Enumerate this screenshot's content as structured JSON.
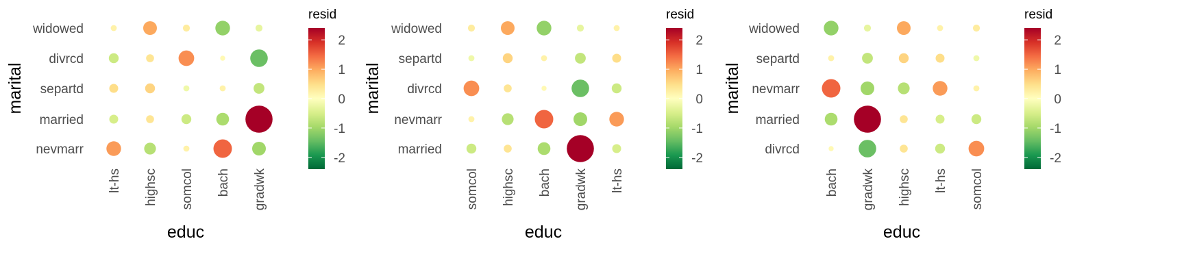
{
  "chart_data": [
    {
      "type": "balloon",
      "xlabel": "educ",
      "ylabel": "marital",
      "x_categories": [
        "lt-hs",
        "highsc",
        "somcol",
        "bach",
        "gradwk"
      ],
      "y_categories": [
        "widowed",
        "divrcd",
        "separtd",
        "married",
        "nevmarr"
      ],
      "legend": {
        "title": "resid",
        "range": [
          -2.4,
          2.4
        ],
        "ticks": [
          "2",
          "1",
          "0",
          "-1",
          "-2"
        ],
        "tick_values": [
          2,
          1,
          0,
          -1,
          -2
        ]
      },
      "cells": [
        {
          "x": "lt-hs",
          "y": "widowed",
          "resid": 0.2
        },
        {
          "x": "highsc",
          "y": "widowed",
          "resid": 1.0
        },
        {
          "x": "somcol",
          "y": "widowed",
          "resid": 0.3
        },
        {
          "x": "bach",
          "y": "widowed",
          "resid": -1.1
        },
        {
          "x": "gradwk",
          "y": "widowed",
          "resid": -0.3
        },
        {
          "x": "lt-hs",
          "y": "divrcd",
          "resid": -0.6
        },
        {
          "x": "highsc",
          "y": "divrcd",
          "resid": 0.4
        },
        {
          "x": "somcol",
          "y": "divrcd",
          "resid": 1.2
        },
        {
          "x": "bach",
          "y": "divrcd",
          "resid": 0.1
        },
        {
          "x": "gradwk",
          "y": "divrcd",
          "resid": -1.4
        },
        {
          "x": "lt-hs",
          "y": "separtd",
          "resid": 0.5
        },
        {
          "x": "highsc",
          "y": "separtd",
          "resid": 0.6
        },
        {
          "x": "somcol",
          "y": "separtd",
          "resid": -0.2
        },
        {
          "x": "bach",
          "y": "separtd",
          "resid": 0.2
        },
        {
          "x": "gradwk",
          "y": "separtd",
          "resid": -0.7
        },
        {
          "x": "lt-hs",
          "y": "married",
          "resid": -0.5
        },
        {
          "x": "highsc",
          "y": "married",
          "resid": 0.4
        },
        {
          "x": "somcol",
          "y": "married",
          "resid": -0.6
        },
        {
          "x": "bach",
          "y": "married",
          "resid": -0.9
        },
        {
          "x": "gradwk",
          "y": "married",
          "resid": 2.4
        },
        {
          "x": "lt-hs",
          "y": "nevmarr",
          "resid": 1.1
        },
        {
          "x": "highsc",
          "y": "nevmarr",
          "resid": -0.8
        },
        {
          "x": "somcol",
          "y": "nevmarr",
          "resid": 0.2
        },
        {
          "x": "bach",
          "y": "nevmarr",
          "resid": 1.5
        },
        {
          "x": "gradwk",
          "y": "nevmarr",
          "resid": -1.0
        }
      ]
    },
    {
      "type": "balloon",
      "xlabel": "educ",
      "ylabel": "marital",
      "x_categories": [
        "somcol",
        "highsc",
        "bach",
        "gradwk",
        "lt-hs"
      ],
      "y_categories": [
        "widowed",
        "separtd",
        "divrcd",
        "nevmarr",
        "married"
      ],
      "legend": {
        "title": "resid",
        "range": [
          -2.4,
          2.4
        ],
        "ticks": [
          "2",
          "1",
          "0",
          "-1",
          "-2"
        ],
        "tick_values": [
          2,
          1,
          0,
          -1,
          -2
        ]
      },
      "cells": [
        {
          "x": "somcol",
          "y": "widowed",
          "resid": 0.3
        },
        {
          "x": "highsc",
          "y": "widowed",
          "resid": 1.0
        },
        {
          "x": "bach",
          "y": "widowed",
          "resid": -1.1
        },
        {
          "x": "gradwk",
          "y": "widowed",
          "resid": -0.3
        },
        {
          "x": "lt-hs",
          "y": "widowed",
          "resid": 0.2
        },
        {
          "x": "somcol",
          "y": "separtd",
          "resid": -0.2
        },
        {
          "x": "highsc",
          "y": "separtd",
          "resid": 0.6
        },
        {
          "x": "bach",
          "y": "separtd",
          "resid": 0.2
        },
        {
          "x": "gradwk",
          "y": "separtd",
          "resid": -0.7
        },
        {
          "x": "lt-hs",
          "y": "separtd",
          "resid": 0.5
        },
        {
          "x": "somcol",
          "y": "divrcd",
          "resid": 1.2
        },
        {
          "x": "highsc",
          "y": "divrcd",
          "resid": 0.4
        },
        {
          "x": "bach",
          "y": "divrcd",
          "resid": 0.1
        },
        {
          "x": "gradwk",
          "y": "divrcd",
          "resid": -1.4
        },
        {
          "x": "lt-hs",
          "y": "divrcd",
          "resid": -0.6
        },
        {
          "x": "somcol",
          "y": "nevmarr",
          "resid": 0.2
        },
        {
          "x": "highsc",
          "y": "nevmarr",
          "resid": -0.8
        },
        {
          "x": "bach",
          "y": "nevmarr",
          "resid": 1.5
        },
        {
          "x": "gradwk",
          "y": "nevmarr",
          "resid": -1.0
        },
        {
          "x": "lt-hs",
          "y": "nevmarr",
          "resid": 1.1
        },
        {
          "x": "somcol",
          "y": "married",
          "resid": -0.6
        },
        {
          "x": "highsc",
          "y": "married",
          "resid": 0.4
        },
        {
          "x": "bach",
          "y": "married",
          "resid": -0.9
        },
        {
          "x": "gradwk",
          "y": "married",
          "resid": 2.4
        },
        {
          "x": "lt-hs",
          "y": "married",
          "resid": -0.5
        }
      ]
    },
    {
      "type": "balloon",
      "xlabel": "educ",
      "ylabel": "marital",
      "x_categories": [
        "bach",
        "gradwk",
        "highsc",
        "lt-hs",
        "somcol"
      ],
      "y_categories": [
        "widowed",
        "separtd",
        "nevmarr",
        "married",
        "divrcd"
      ],
      "legend": {
        "title": "resid",
        "range": [
          -2.4,
          2.4
        ],
        "ticks": [
          "2",
          "1",
          "0",
          "-1",
          "-2"
        ],
        "tick_values": [
          2,
          1,
          0,
          -1,
          -2
        ]
      },
      "cells": [
        {
          "x": "bach",
          "y": "widowed",
          "resid": -1.1
        },
        {
          "x": "gradwk",
          "y": "widowed",
          "resid": -0.3
        },
        {
          "x": "highsc",
          "y": "widowed",
          "resid": 1.0
        },
        {
          "x": "lt-hs",
          "y": "widowed",
          "resid": 0.2
        },
        {
          "x": "somcol",
          "y": "widowed",
          "resid": 0.3
        },
        {
          "x": "bach",
          "y": "separtd",
          "resid": 0.2
        },
        {
          "x": "gradwk",
          "y": "separtd",
          "resid": -0.7
        },
        {
          "x": "highsc",
          "y": "separtd",
          "resid": 0.6
        },
        {
          "x": "lt-hs",
          "y": "separtd",
          "resid": 0.5
        },
        {
          "x": "somcol",
          "y": "separtd",
          "resid": -0.2
        },
        {
          "x": "bach",
          "y": "nevmarr",
          "resid": 1.5
        },
        {
          "x": "gradwk",
          "y": "nevmarr",
          "resid": -1.0
        },
        {
          "x": "highsc",
          "y": "nevmarr",
          "resid": -0.8
        },
        {
          "x": "lt-hs",
          "y": "nevmarr",
          "resid": 1.1
        },
        {
          "x": "somcol",
          "y": "nevmarr",
          "resid": 0.2
        },
        {
          "x": "bach",
          "y": "married",
          "resid": -0.9
        },
        {
          "x": "gradwk",
          "y": "married",
          "resid": 2.4
        },
        {
          "x": "highsc",
          "y": "married",
          "resid": 0.4
        },
        {
          "x": "lt-hs",
          "y": "married",
          "resid": -0.5
        },
        {
          "x": "somcol",
          "y": "married",
          "resid": -0.6
        },
        {
          "x": "bach",
          "y": "divrcd",
          "resid": 0.1
        },
        {
          "x": "gradwk",
          "y": "divrcd",
          "resid": -1.4
        },
        {
          "x": "highsc",
          "y": "divrcd",
          "resid": 0.4
        },
        {
          "x": "lt-hs",
          "y": "divrcd",
          "resid": -0.6
        },
        {
          "x": "somcol",
          "y": "divrcd",
          "resid": 1.2
        }
      ]
    }
  ]
}
